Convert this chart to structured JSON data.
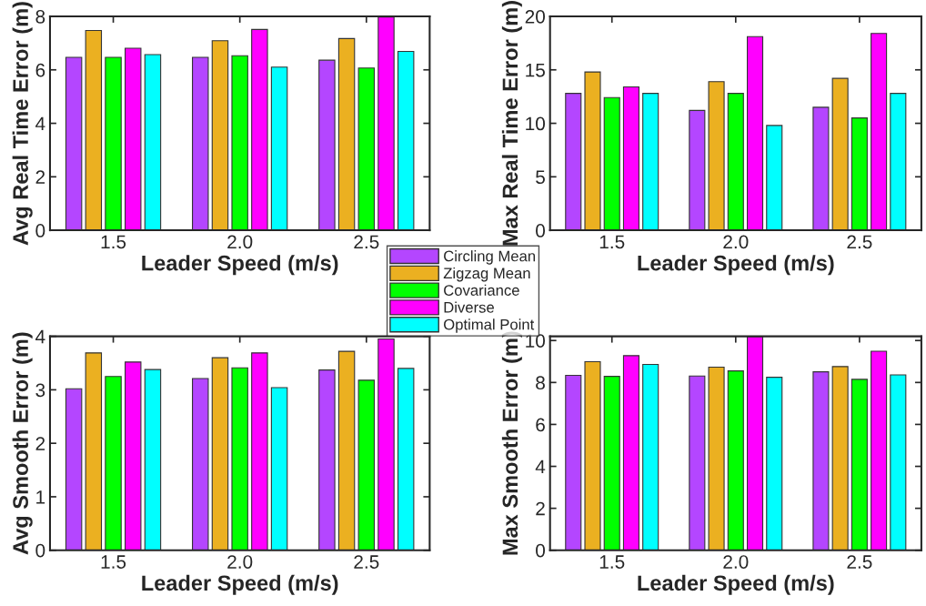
{
  "chart_data": [
    {
      "type": "bar",
      "xlabel": "Leader Speed (m/s)",
      "ylabel": "Avg Real Time Error (m)",
      "categories": [
        "1.5",
        "2.0",
        "2.5"
      ],
      "ylim": [
        0,
        8
      ],
      "yticks": [
        0,
        2,
        4,
        6,
        8
      ],
      "legend": "bottom right",
      "series": [
        {
          "name": "Circling Mean",
          "color": "#b446ff",
          "values": [
            6.47,
            6.47,
            6.36
          ]
        },
        {
          "name": "Zigzag Mean",
          "color": "#ebb021",
          "values": [
            7.47,
            7.09,
            7.17
          ]
        },
        {
          "name": "Covariance",
          "color": "#00ff00",
          "values": [
            6.47,
            6.53,
            6.07
          ]
        },
        {
          "name": "Diverse",
          "color": "#ff00ff",
          "values": [
            6.81,
            7.51,
            7.98
          ]
        },
        {
          "name": "Optimal Point",
          "color": "#00ffff",
          "values": [
            6.57,
            6.1,
            6.69
          ]
        }
      ]
    },
    {
      "type": "bar",
      "xlabel": "Leader Speed (m/s)",
      "ylabel": "Max Real Time Error (m)",
      "categories": [
        "1.5",
        "2.0",
        "2.5"
      ],
      "ylim": [
        0,
        20
      ],
      "yticks": [
        0,
        5,
        10,
        15,
        20
      ],
      "series": [
        {
          "color": "#b446ff",
          "values": [
            12.8,
            11.2,
            11.5
          ]
        },
        {
          "color": "#ebb021",
          "values": [
            14.8,
            13.9,
            14.2
          ]
        },
        {
          "color": "#00ff00",
          "values": [
            12.4,
            12.8,
            10.5
          ]
        },
        {
          "color": "#ff00ff",
          "values": [
            13.4,
            18.1,
            18.4
          ]
        },
        {
          "color": "#00ffff",
          "values": [
            12.8,
            9.8,
            12.8
          ]
        }
      ]
    },
    {
      "type": "bar",
      "xlabel": "Leader Speed (m/s)",
      "ylabel": "Avg Smooth Error (m)",
      "categories": [
        "1.5",
        "2.0",
        "2.5"
      ],
      "ylim": [
        0,
        4
      ],
      "yticks": [
        0,
        1,
        2,
        3,
        4
      ],
      "series": [
        {
          "color": "#b446ff",
          "values": [
            3.02,
            3.21,
            3.37
          ]
        },
        {
          "color": "#ebb021",
          "values": [
            3.69,
            3.6,
            3.72
          ]
        },
        {
          "color": "#00ff00",
          "values": [
            3.25,
            3.41,
            3.18
          ]
        },
        {
          "color": "#ff00ff",
          "values": [
            3.52,
            3.69,
            3.95
          ]
        },
        {
          "color": "#00ffff",
          "values": [
            3.38,
            3.04,
            3.4
          ]
        }
      ]
    },
    {
      "type": "bar",
      "xlabel": "Leader Speed (m/s)",
      "ylabel": "Max Smooth Error (m)",
      "categories": [
        "1.5",
        "2.0",
        "2.5"
      ],
      "ylim": [
        0,
        10.2
      ],
      "yticks": [
        0,
        2,
        4,
        6,
        8,
        10
      ],
      "series": [
        {
          "color": "#b446ff",
          "values": [
            8.34,
            8.31,
            8.51
          ]
        },
        {
          "color": "#ebb021",
          "values": [
            8.99,
            8.73,
            8.76
          ]
        },
        {
          "color": "#00ff00",
          "values": [
            8.29,
            8.55,
            8.15
          ]
        },
        {
          "color": "#ff00ff",
          "values": [
            9.28,
            10.2,
            9.49
          ]
        },
        {
          "color": "#00ffff",
          "values": [
            8.86,
            8.25,
            8.36
          ]
        }
      ]
    }
  ]
}
